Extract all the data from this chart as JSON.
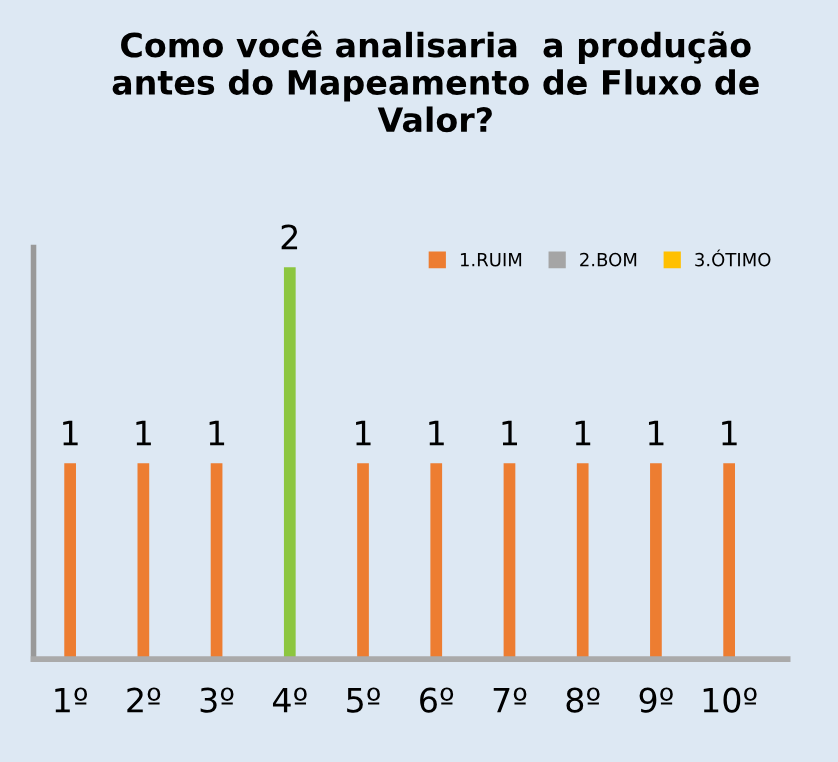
{
  "chart_data": {
    "type": "bar",
    "title": "Como você analisaria  a produção\nantes do Mapeamento de Fluxo de\nValor?",
    "categories": [
      "1º",
      "2º",
      "3º",
      "4º",
      "5º",
      "6º",
      "7º",
      "8º",
      "9º",
      "10º"
    ],
    "series": [
      {
        "name": "1.RUIM",
        "color": "#ed7d31",
        "colors": [
          "#ed7d31",
          "#ed7d31",
          "#ed7d31",
          "#8cc63f",
          "#ed7d31",
          "#ed7d31",
          "#ed7d31",
          "#ed7d31",
          "#ed7d31",
          "#ed7d31"
        ],
        "values": [
          1,
          1,
          1,
          2,
          1,
          1,
          1,
          1,
          1,
          1
        ]
      },
      {
        "name": "2.BOM",
        "color": "#a5a5a5",
        "values": [
          null,
          null,
          null,
          null,
          null,
          null,
          null,
          null,
          null,
          null
        ]
      },
      {
        "name": "3.ÓTIMO",
        "color": "#ffc000",
        "values": [
          null,
          null,
          null,
          null,
          null,
          null,
          null,
          null,
          null,
          null
        ]
      }
    ],
    "data_labels": true,
    "grid": false,
    "legend": "top right"
  }
}
